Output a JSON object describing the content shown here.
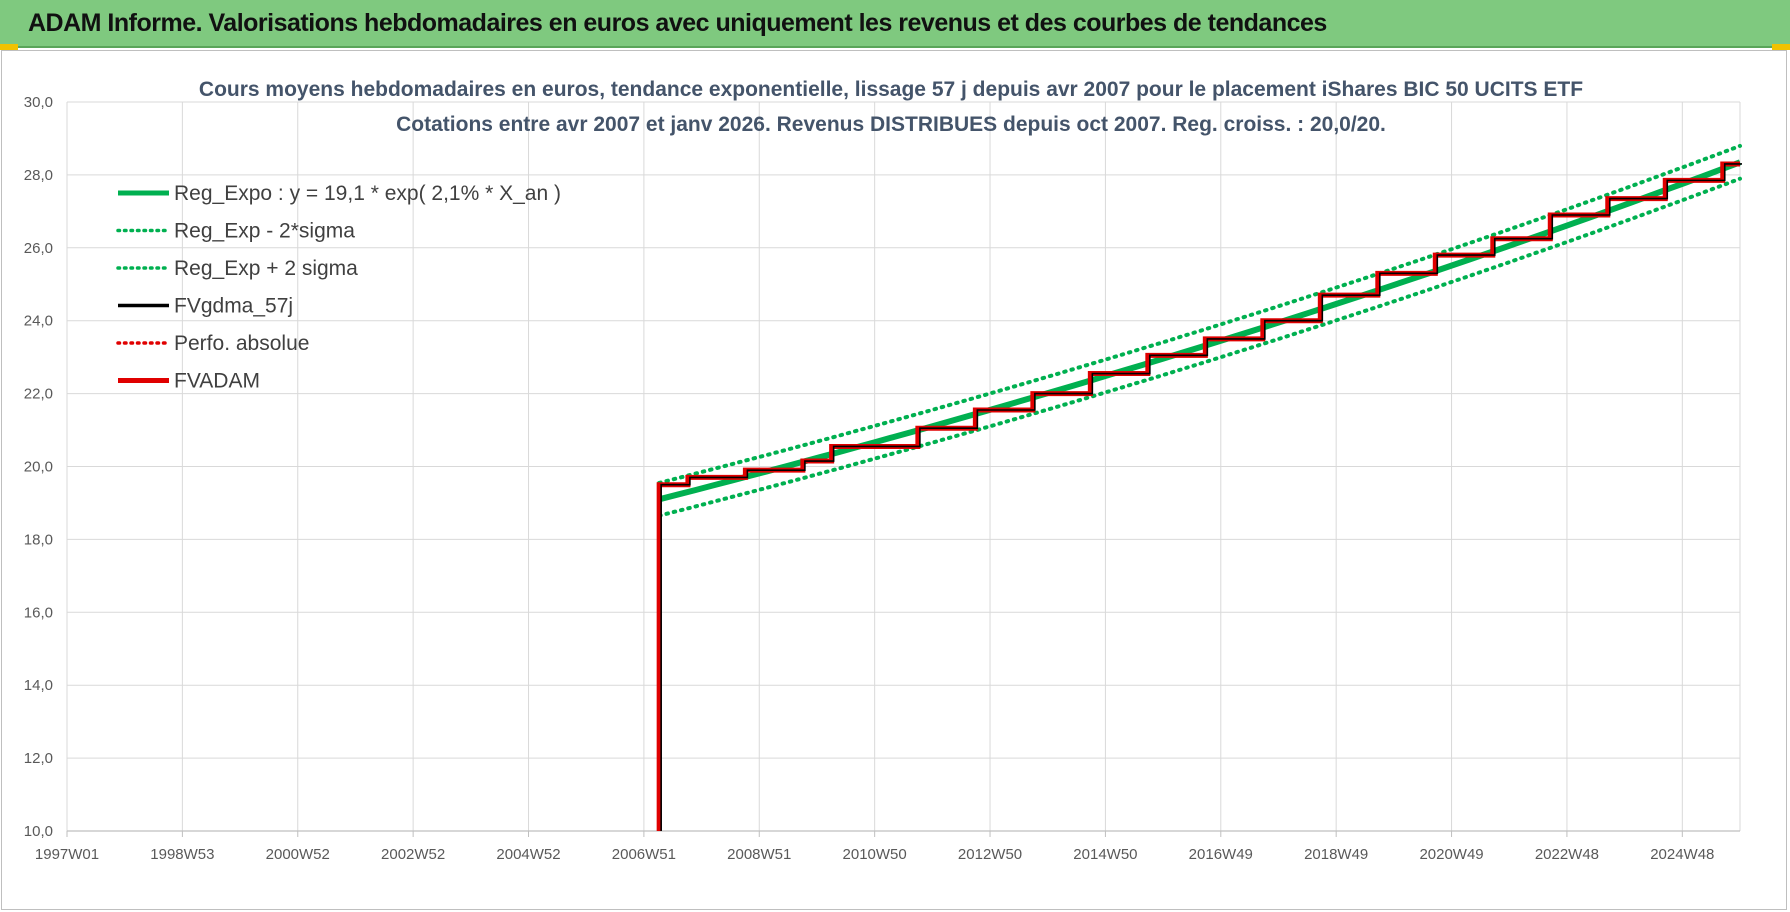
{
  "banner": {
    "title": "ADAM Informe. Valorisations hebdomadaires en euros avec uniquement les revenus et des courbes de tendances",
    "color": "#7fc97f"
  },
  "chart_data": {
    "type": "line",
    "title": "Cours moyens hebdomadaires en euros, tendance exponentielle, lissage 57 j depuis avr 2007 pour le placement iShares BIC 50 UCITS ETF",
    "subtitle": "Cotations entre avr 2007 et janv 2026.  Revenus DISTRIBUES depuis oct 2007. Reg. croiss. : 20,0/20.",
    "xlabel": "",
    "ylabel": "",
    "ylim": [
      10,
      30
    ],
    "y_ticks": [
      "10,0",
      "12,0",
      "14,0",
      "16,0",
      "18,0",
      "20,0",
      "22,0",
      "24,0",
      "26,0",
      "28,0",
      "30,0"
    ],
    "x_ticks": [
      "1997W01",
      "1998W53",
      "2000W52",
      "2002W52",
      "2004W52",
      "2006W51",
      "2008W51",
      "2010W50",
      "2012W50",
      "2014W50",
      "2016W49",
      "2018W49",
      "2020W49",
      "2022W48",
      "2024W48"
    ],
    "xlim": [
      1997.0,
      2026.1
    ],
    "grid": true,
    "legend_position": "top-left",
    "legend": [
      {
        "label": "Reg_Expo : y = 19,1 * exp( 2,1% *  X_an )",
        "color": "#00b050",
        "style": "solid-thick"
      },
      {
        "label": "Reg_Exp - 2*sigma",
        "color": "#00b050",
        "style": "dotted"
      },
      {
        "label": "Reg_Exp + 2 sigma",
        "color": "#00b050",
        "style": "dotted"
      },
      {
        "label": "FVgdma_57j",
        "color": "#000000",
        "style": "solid"
      },
      {
        "label": "Perfo. absolue",
        "color": "#e00000",
        "style": "dotted"
      },
      {
        "label": "FVADAM",
        "color": "#e00000",
        "style": "solid-thick"
      }
    ],
    "regression": {
      "a": 19.1,
      "rate": 0.021,
      "start_year": 2007.3,
      "end_year": 2026.1,
      "sigma_band": 0.45
    },
    "fvadam_steps": [
      {
        "x": 2007.3,
        "y": 19.5
      },
      {
        "x": 2007.8,
        "y": 19.7
      },
      {
        "x": 2008.8,
        "y": 19.9
      },
      {
        "x": 2009.8,
        "y": 20.15
      },
      {
        "x": 2010.3,
        "y": 20.55
      },
      {
        "x": 2011.8,
        "y": 21.05
      },
      {
        "x": 2012.8,
        "y": 21.55
      },
      {
        "x": 2013.8,
        "y": 22.0
      },
      {
        "x": 2014.8,
        "y": 22.55
      },
      {
        "x": 2015.8,
        "y": 23.05
      },
      {
        "x": 2016.8,
        "y": 23.5
      },
      {
        "x": 2017.8,
        "y": 24.0
      },
      {
        "x": 2018.8,
        "y": 24.7
      },
      {
        "x": 2019.8,
        "y": 25.3
      },
      {
        "x": 2020.8,
        "y": 25.8
      },
      {
        "x": 2021.8,
        "y": 26.25
      },
      {
        "x": 2022.8,
        "y": 26.9
      },
      {
        "x": 2023.8,
        "y": 27.35
      },
      {
        "x": 2024.8,
        "y": 27.85
      },
      {
        "x": 2025.8,
        "y": 28.3
      }
    ],
    "fvadam_drop_to": 10.0,
    "fvadam_end_x": 2026.1
  }
}
